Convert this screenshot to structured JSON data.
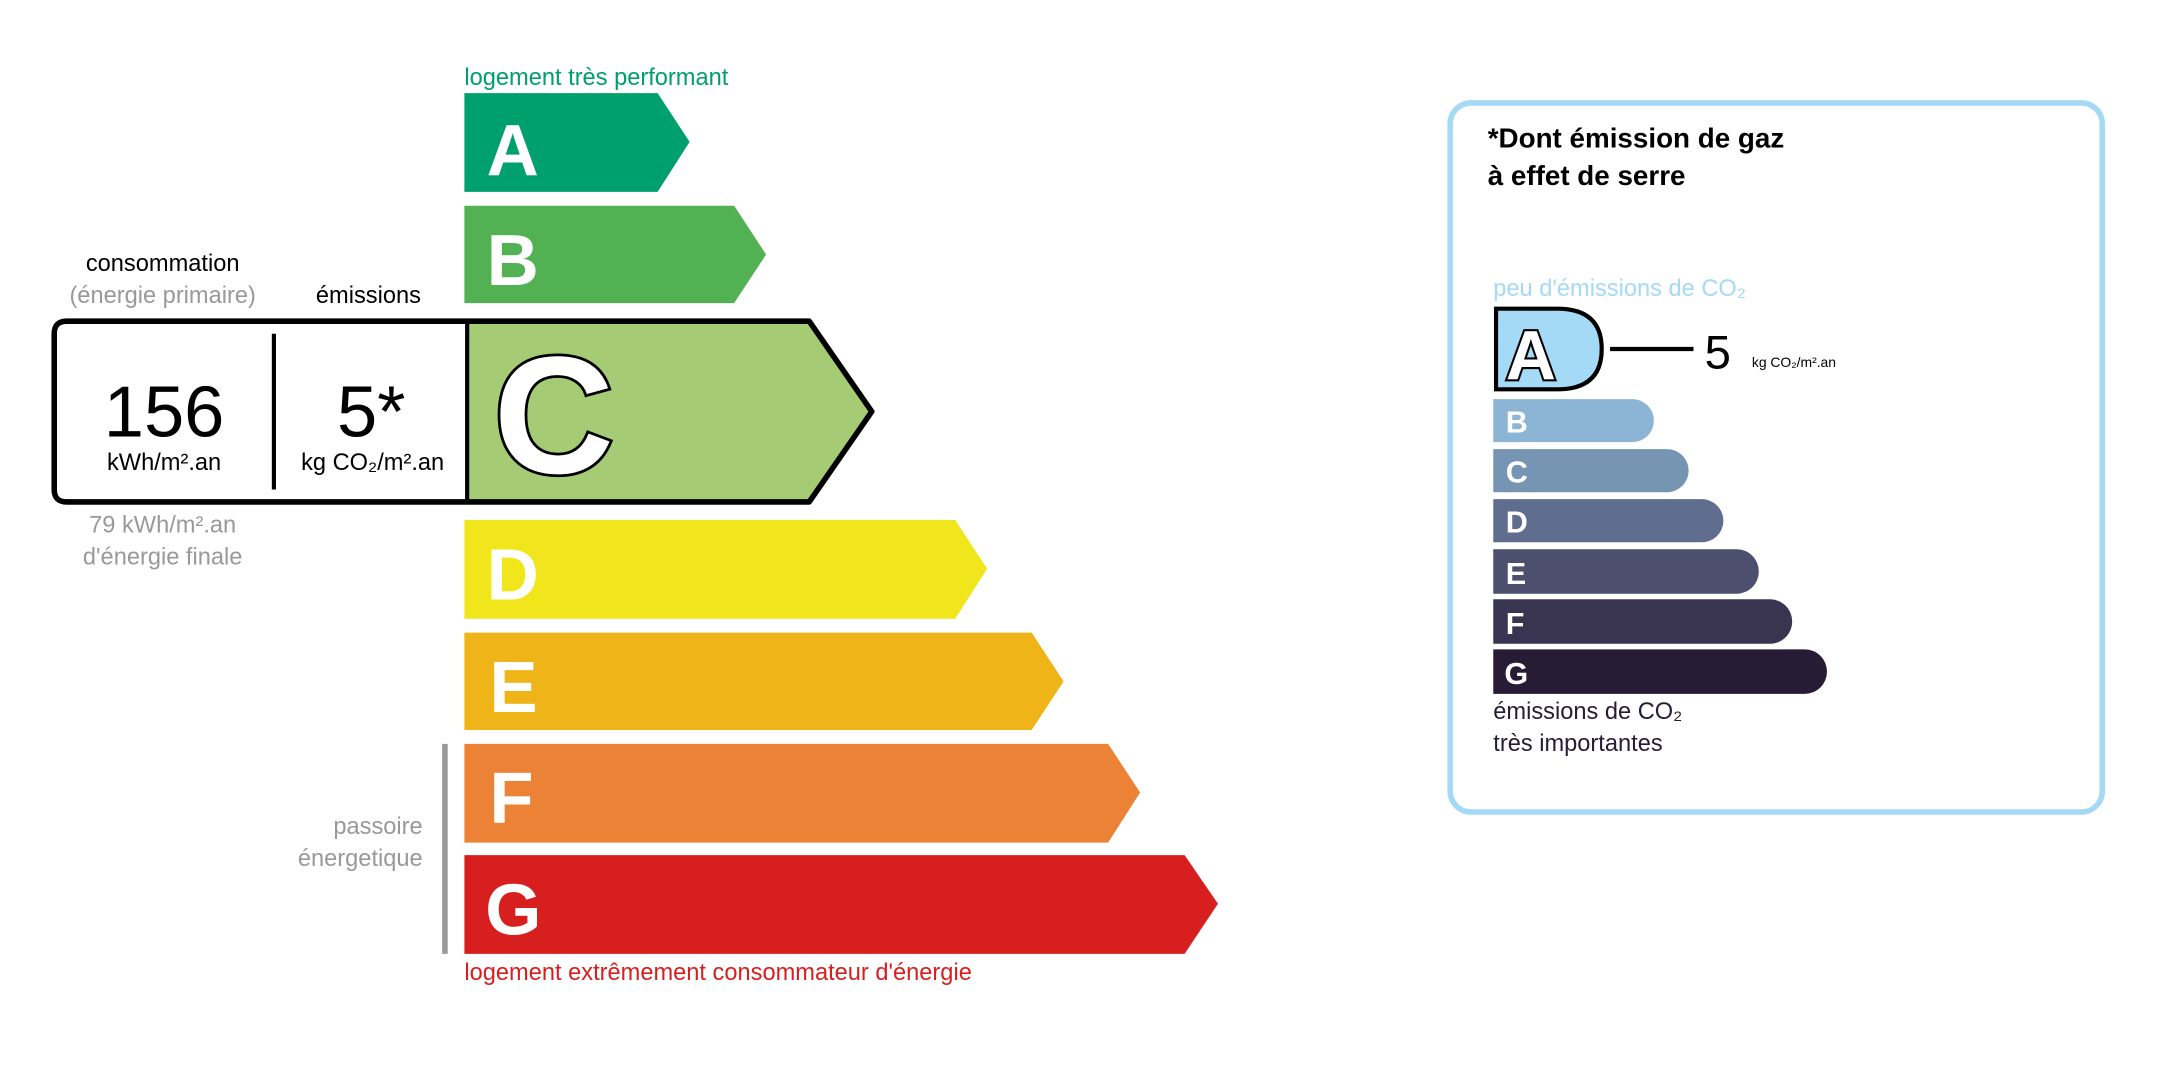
{
  "energy": {
    "top_label": "logement très performant",
    "bottom_label": "logement extrêmement consommateur d'énergie",
    "passoire_label": [
      "passoire",
      "énergetique"
    ],
    "classes": [
      {
        "letter": "A",
        "color": "#00a06d"
      },
      {
        "letter": "B",
        "color": "#52b153"
      },
      {
        "letter": "C",
        "color": "#a5cc74"
      },
      {
        "letter": "D",
        "color": "#f0e61b"
      },
      {
        "letter": "E",
        "color": "#efb418"
      },
      {
        "letter": "F",
        "color": "#eb8235"
      },
      {
        "letter": "G",
        "color": "#d81f20"
      }
    ],
    "current_class": "C",
    "consumption_title": "consommation",
    "consumption_subtitle": "(énergie primaire)",
    "emissions_title": "émissions",
    "consumption_value": "156",
    "consumption_unit": "kWh/m².an",
    "emissions_value": "5*",
    "emissions_unit": "kg CO₂/m².an",
    "final_energy": [
      "79 kWh/m².an",
      "d'énergie finale"
    ]
  },
  "ges": {
    "title": [
      "*Dont émission de gaz",
      "à effet de serre"
    ],
    "top_label": "peu d'émissions de CO₂",
    "bottom_label": [
      "émissions de CO₂",
      "très importantes"
    ],
    "classes": [
      {
        "letter": "A",
        "color": "#a4daf6"
      },
      {
        "letter": "B",
        "color": "#8cb4d4"
      },
      {
        "letter": "C",
        "color": "#7695b2"
      },
      {
        "letter": "D",
        "color": "#5f6e8f"
      },
      {
        "letter": "E",
        "color": "#4c506e"
      },
      {
        "letter": "F",
        "color": "#393551"
      },
      {
        "letter": "G",
        "color": "#281b35"
      }
    ],
    "current_class": "A",
    "value": "5",
    "unit": "kg CO₂/m².an",
    "border_color": "#a4daf6"
  }
}
